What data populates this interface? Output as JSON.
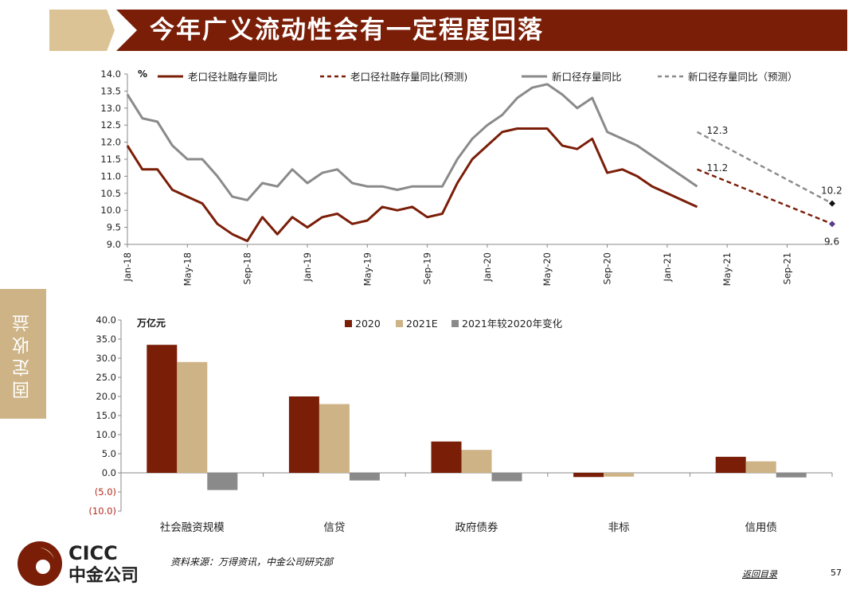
{
  "title": "今年广义流动性会有一定程度回落",
  "side_tab": "固定收益",
  "colors": {
    "old": "#7a1e08",
    "old_forecast": "#7a1e08",
    "new": "#8a8a8a",
    "new_forecast": "#8a8a8a",
    "bar2020": "#7a1e08",
    "bar2021": "#cdb386",
    "barChange": "#8a8a8a"
  },
  "chart_data": [
    {
      "type": "line",
      "unit": "%",
      "ylim": [
        9.0,
        14.0
      ],
      "yticks": [
        "14.0",
        "13.5",
        "13.0",
        "12.5",
        "12.0",
        "11.5",
        "11.0",
        "10.5",
        "10.0",
        "9.5",
        "9.0"
      ],
      "xticks": [
        "Jan-18",
        "May-18",
        "Sep-18",
        "Jan-19",
        "May-19",
        "Sep-19",
        "Jan-20",
        "May-20",
        "Sep-20",
        "Jan-21",
        "May-21",
        "Sep-21"
      ],
      "legend": [
        "老口径社融存量同比",
        "老口径社融存量同比(预测)",
        "新口径存量同比",
        "新口径存量同比（预测）"
      ],
      "series": [
        {
          "name": "老口径社融存量同比",
          "x": [
            "2018-01",
            "2018-02",
            "2018-03",
            "2018-04",
            "2018-05",
            "2018-06",
            "2018-07",
            "2018-08",
            "2018-09",
            "2018-10",
            "2018-11",
            "2018-12",
            "2019-01",
            "2019-02",
            "2019-03",
            "2019-04",
            "2019-05",
            "2019-06",
            "2019-07",
            "2019-08",
            "2019-09",
            "2019-10",
            "2019-11",
            "2019-12",
            "2020-01",
            "2020-02",
            "2020-03",
            "2020-04",
            "2020-05",
            "2020-06",
            "2020-07",
            "2020-08",
            "2020-09",
            "2020-10",
            "2020-11",
            "2020-12",
            "2021-01",
            "2021-02",
            "2021-03"
          ],
          "values": [
            11.9,
            11.2,
            11.2,
            10.6,
            10.4,
            10.2,
            9.6,
            9.3,
            9.1,
            9.8,
            9.3,
            9.8,
            9.5,
            9.8,
            9.9,
            9.6,
            9.7,
            10.1,
            10.0,
            10.1,
            9.8,
            9.9,
            10.8,
            11.5,
            11.9,
            12.3,
            12.4,
            12.4,
            12.4,
            11.9,
            11.8,
            12.1,
            11.1,
            11.2,
            11.0,
            10.7,
            10.5,
            10.3,
            10.1
          ]
        },
        {
          "name": "老口径社融存量同比(预测)",
          "x": [
            "2021-03",
            "2021-12"
          ],
          "values": [
            11.2,
            9.6
          ]
        },
        {
          "name": "新口径存量同比",
          "x": [
            "2018-01",
            "2018-02",
            "2018-03",
            "2018-04",
            "2018-05",
            "2018-06",
            "2018-07",
            "2018-08",
            "2018-09",
            "2018-10",
            "2018-11",
            "2018-12",
            "2019-01",
            "2019-02",
            "2019-03",
            "2019-04",
            "2019-05",
            "2019-06",
            "2019-07",
            "2019-08",
            "2019-09",
            "2019-10",
            "2019-11",
            "2019-12",
            "2020-01",
            "2020-02",
            "2020-03",
            "2020-04",
            "2020-05",
            "2020-06",
            "2020-07",
            "2020-08",
            "2020-09",
            "2020-10",
            "2020-11",
            "2020-12",
            "2021-01",
            "2021-02",
            "2021-03"
          ],
          "values": [
            13.4,
            12.7,
            12.6,
            11.9,
            11.5,
            11.5,
            11.0,
            10.4,
            10.3,
            10.8,
            10.7,
            11.2,
            10.8,
            11.1,
            11.2,
            10.8,
            10.7,
            10.7,
            10.6,
            10.7,
            10.7,
            10.7,
            11.5,
            12.1,
            12.5,
            12.8,
            13.3,
            13.6,
            13.7,
            13.4,
            13.0,
            13.3,
            12.3,
            12.1,
            11.9,
            11.6,
            11.3,
            11.0,
            10.7
          ]
        },
        {
          "name": "新口径存量同比（预测）",
          "x": [
            "2021-03",
            "2021-12"
          ],
          "values": [
            12.3,
            10.2
          ]
        }
      ],
      "annotations": [
        "12.3",
        "11.2",
        "10.2",
        "9.6"
      ]
    },
    {
      "type": "bar",
      "unit": "万亿元",
      "ylim": [
        -10.0,
        40.0
      ],
      "yticks": [
        "40.0",
        "35.0",
        "30.0",
        "25.0",
        "20.0",
        "15.0",
        "10.0",
        "5.0",
        "0.0",
        "(5.0)",
        "(10.0)"
      ],
      "categories": [
        "社会融资规模",
        "信贷",
        "政府债券",
        "非标",
        "信用债"
      ],
      "series": [
        {
          "name": "2020",
          "values": [
            33.5,
            20.0,
            8.2,
            -1.1,
            4.2
          ]
        },
        {
          "name": "2021E",
          "values": [
            29.0,
            18.0,
            6.0,
            -1.0,
            3.0
          ]
        },
        {
          "name": "2021年较2020年变化",
          "values": [
            -4.5,
            -2.0,
            -2.2,
            0.1,
            -1.2
          ]
        }
      ]
    }
  ],
  "logo": {
    "en": "CICC",
    "zh": "中金公司"
  },
  "source": "资料来源：万得资讯，中金公司研究部",
  "back_link": "返回目录",
  "page_number": "57"
}
